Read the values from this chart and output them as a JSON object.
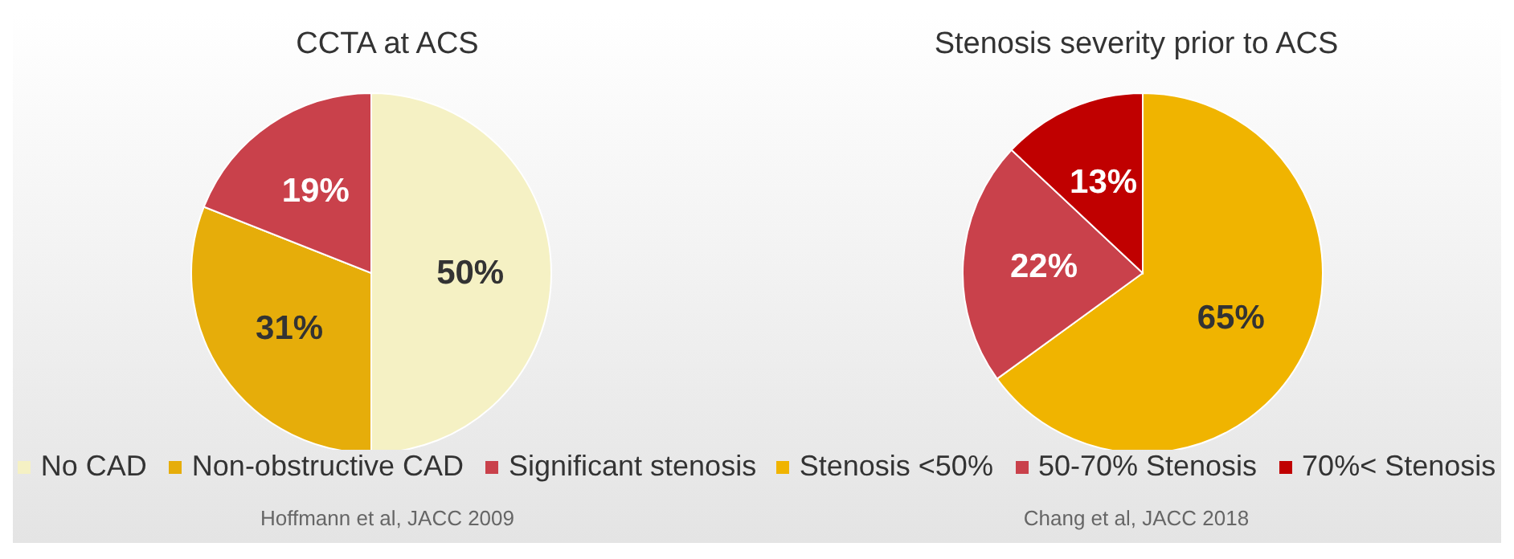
{
  "chart_data": [
    {
      "type": "pie",
      "title": "CCTA at ACS",
      "categories": [
        "No CAD",
        "Non-obstructive CAD",
        "Significant stenosis"
      ],
      "values": [
        50,
        31,
        19
      ],
      "value_labels": [
        "50%",
        "31%",
        "19%"
      ],
      "colors": [
        "#f5f1c4",
        "#e6ad0a",
        "#c9414b"
      ],
      "legend": "bottom",
      "annotations": [
        "Hoffmann et al, JACC 2009"
      ]
    },
    {
      "type": "pie",
      "title": "Stenosis severity prior to ACS",
      "categories": [
        "Stenosis <50%",
        "50-70% Stenosis",
        "70%< Stenosis"
      ],
      "values": [
        65,
        22,
        13
      ],
      "value_labels": [
        "65%",
        "22%",
        "13%"
      ],
      "colors": [
        "#f0b400",
        "#c9414b",
        "#c00000"
      ],
      "legend": "bottom",
      "annotations": [
        "Chang et al, JACC 2018"
      ]
    }
  ]
}
